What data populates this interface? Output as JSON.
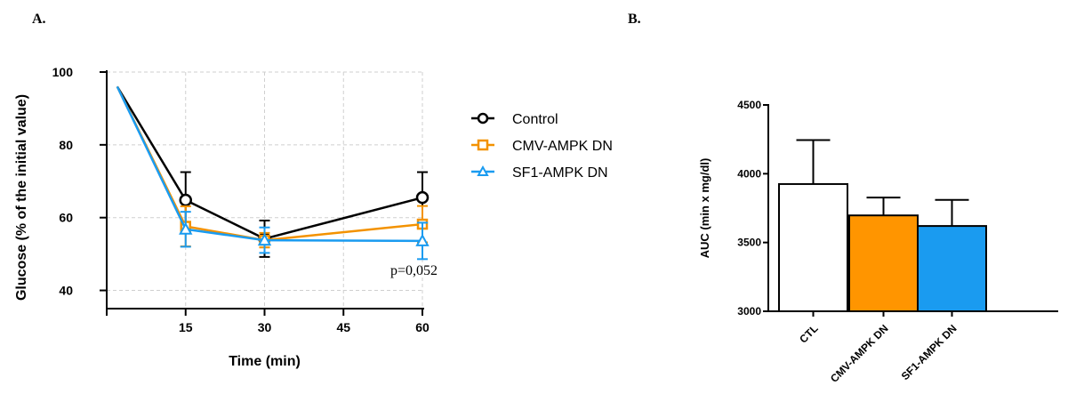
{
  "panels": {
    "a_label": "A.",
    "b_label": "B."
  },
  "chart_data": [
    {
      "type": "line",
      "title": "",
      "xlabel": "Time (min)",
      "ylabel": "Glucose (% of the initial value)",
      "xlim": [
        0,
        60
      ],
      "ylim": [
        35,
        100
      ],
      "x_ticks": [
        "0",
        "15",
        "30",
        "45",
        "60"
      ],
      "y_ticks": [
        "40",
        "60",
        "80",
        "100"
      ],
      "grid": true,
      "legend": "top-right",
      "annotation": "p=0,052",
      "series": [
        {
          "name": "Control",
          "color": "#000000",
          "marker": "circle",
          "x": [
            2,
            15,
            30,
            60
          ],
          "y": [
            96,
            64.8,
            54.2,
            65.5
          ],
          "err": [
            0,
            7.7,
            5,
            7
          ]
        },
        {
          "name": "CMV-AMPK DN",
          "color": "#f39200",
          "marker": "square",
          "x": [
            2,
            15,
            30,
            60
          ],
          "y": [
            96,
            57.6,
            53.8,
            58.2
          ],
          "err": [
            0,
            5.5,
            2,
            5
          ]
        },
        {
          "name": "SF1-AMPK DN",
          "color": "#1a9bf0",
          "marker": "triangle",
          "x": [
            2,
            15,
            30,
            60
          ],
          "y": [
            96,
            56.8,
            53.8,
            53.6
          ],
          "err": [
            0,
            4.8,
            3.5,
            5
          ]
        }
      ]
    },
    {
      "type": "bar",
      "title": "",
      "ylabel": "AUC (min x mg/dl)",
      "ylim": [
        3000,
        4500
      ],
      "y_ticks": [
        "3000",
        "3500",
        "4000",
        "4500"
      ],
      "categories": [
        "CTL",
        "CMV-AMPK DN",
        "SF1-AMPK DN"
      ],
      "values": [
        3925,
        3697,
        3620
      ],
      "errors": [
        320,
        130,
        190
      ],
      "colors": [
        "#ffffff",
        "#ff9500",
        "#1a9bf0"
      ]
    }
  ]
}
